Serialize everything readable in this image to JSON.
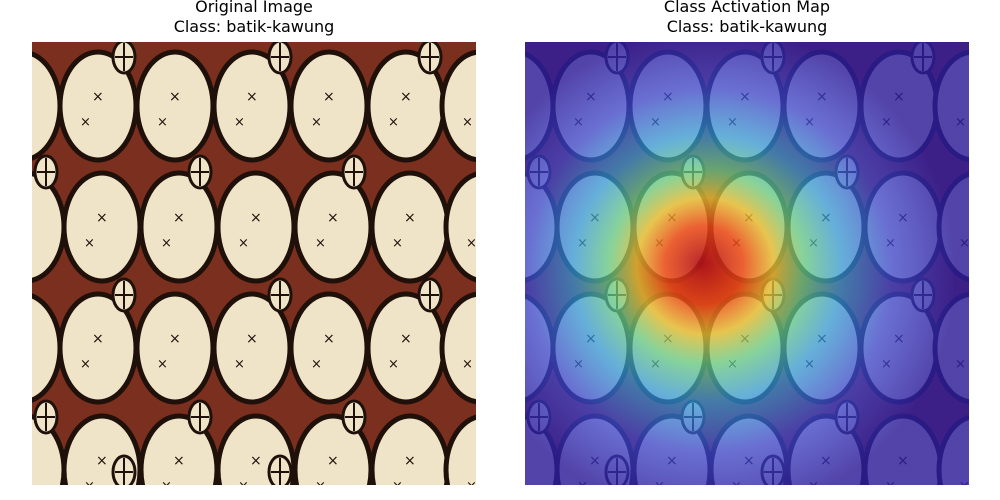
{
  "panels": [
    {
      "title": "Original Image",
      "class_line": "Class: batik-kawung",
      "image": "batik-kawung-pattern"
    },
    {
      "title": "Class Activation Map",
      "class_line": "Class: batik-kawung",
      "image": "batik-kawung-pattern-with-heatmap-overlay"
    }
  ],
  "colors": {
    "background": "#7a2f1f",
    "ellipse": "#efe3c8",
    "outline": "#1f100a",
    "overlay_low": "#3f2fd0"
  }
}
